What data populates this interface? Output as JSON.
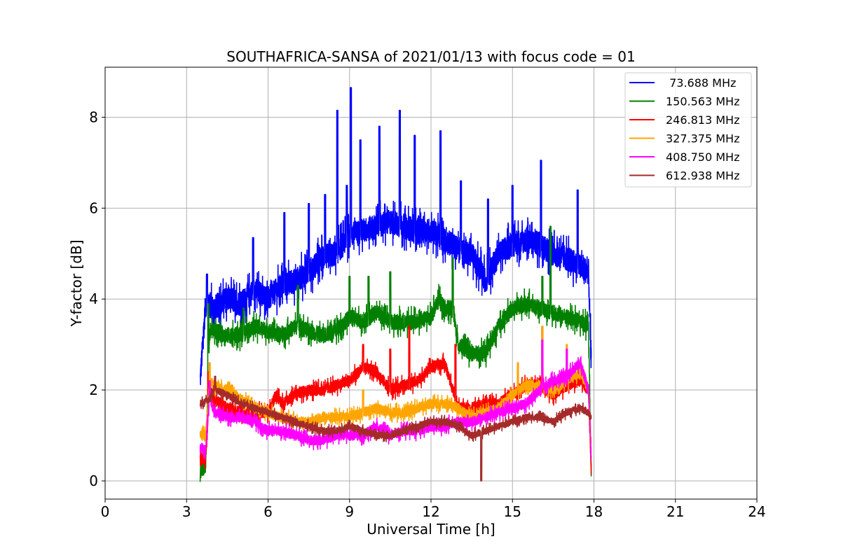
{
  "chart_data": {
    "type": "line",
    "title": "SOUTHAFRICA-SANSA of 2021/01/13 with focus code = 01",
    "xlabel": "Universal Time [h]",
    "ylabel": "Y-factor [dB]",
    "xlim": [
      0,
      24
    ],
    "ylim": [
      -0.4,
      9.1
    ],
    "xticks": [
      0,
      3,
      6,
      9,
      12,
      15,
      18,
      21,
      24
    ],
    "xtick_labels": [
      "0",
      "3",
      "6",
      "9",
      "12",
      "15",
      "18",
      "21",
      "24"
    ],
    "yticks": [
      0,
      2,
      4,
      6,
      8
    ],
    "ytick_labels": [
      "0",
      "2",
      "4",
      "6",
      "8"
    ],
    "grid": true,
    "legend_position": "top-right",
    "series": [
      {
        "name": " 73.688 MHz",
        "color": "#0000ff",
        "x": [
          3.5,
          3.7,
          4.0,
          4.5,
          5.0,
          5.5,
          6.0,
          6.5,
          7.0,
          7.5,
          8.0,
          8.5,
          9.0,
          9.5,
          10.0,
          10.5,
          11.0,
          11.5,
          12.0,
          12.5,
          13.0,
          13.5,
          14.0,
          14.5,
          15.0,
          15.5,
          16.0,
          16.5,
          17.0,
          17.5,
          17.8,
          17.9
        ],
        "y": [
          2.2,
          3.9,
          3.8,
          4.0,
          3.9,
          4.2,
          4.0,
          4.3,
          4.4,
          4.6,
          4.9,
          5.0,
          5.4,
          5.5,
          5.6,
          5.7,
          5.6,
          5.5,
          5.5,
          5.3,
          5.1,
          5.0,
          4.4,
          5.0,
          5.2,
          5.3,
          5.2,
          5.0,
          4.9,
          4.7,
          4.6,
          2.6
        ],
        "peaks": [
          [
            3.75,
            4.55
          ],
          [
            5.45,
            5.35
          ],
          [
            6.6,
            5.9
          ],
          [
            7.5,
            6.1
          ],
          [
            8.1,
            6.3
          ],
          [
            8.55,
            8.15
          ],
          [
            8.9,
            6.5
          ],
          [
            9.05,
            8.65
          ],
          [
            9.4,
            7.5
          ],
          [
            10.1,
            7.8
          ],
          [
            10.85,
            8.15
          ],
          [
            11.4,
            7.6
          ],
          [
            12.35,
            7.7
          ],
          [
            13.1,
            6.6
          ],
          [
            14.1,
            6.2
          ],
          [
            15.0,
            6.5
          ],
          [
            16.05,
            7.05
          ],
          [
            17.4,
            6.4
          ]
        ],
        "spread": 0.55
      },
      {
        "name": "150.563 MHz",
        "color": "#008000",
        "x": [
          3.5,
          3.7,
          3.85,
          4.0,
          4.5,
          5.0,
          5.5,
          6.0,
          6.5,
          7.0,
          7.5,
          8.0,
          8.5,
          9.0,
          9.5,
          10.0,
          10.5,
          11.0,
          11.5,
          12.0,
          12.3,
          12.5,
          12.8,
          13.0,
          13.5,
          14.0,
          14.5,
          15.0,
          15.5,
          16.0,
          16.5,
          17.0,
          17.5,
          17.8,
          17.9
        ],
        "y": [
          0.3,
          0.3,
          3.3,
          3.3,
          3.2,
          3.2,
          3.4,
          3.3,
          3.2,
          3.4,
          3.3,
          3.2,
          3.3,
          3.6,
          3.5,
          3.7,
          3.5,
          3.5,
          3.5,
          3.6,
          4.0,
          3.8,
          3.8,
          3.0,
          2.8,
          2.8,
          3.4,
          3.8,
          3.9,
          3.8,
          3.7,
          3.6,
          3.5,
          3.4,
          0.1
        ],
        "peaks": [
          [
            3.8,
            3.9
          ],
          [
            5.1,
            3.8
          ],
          [
            7.1,
            4.3
          ],
          [
            9.0,
            4.5
          ],
          [
            9.7,
            4.5
          ],
          [
            10.5,
            4.6
          ],
          [
            11.0,
            3.3
          ],
          [
            12.8,
            4.9
          ],
          [
            16.1,
            4.5
          ],
          [
            16.4,
            5.6
          ]
        ],
        "spread": 0.35
      },
      {
        "name": "246.813 MHz",
        "color": "#ff0000",
        "x": [
          3.5,
          3.7,
          3.85,
          4.0,
          4.5,
          5.0,
          5.5,
          6.0,
          6.3,
          6.5,
          7.0,
          7.5,
          8.0,
          8.5,
          9.0,
          9.5,
          10.0,
          10.5,
          11.0,
          11.5,
          12.0,
          12.5,
          13.0,
          13.5,
          14.0,
          14.5,
          15.0,
          15.5,
          16.0,
          16.5,
          17.0,
          17.5,
          17.8,
          17.9
        ],
        "y": [
          0.5,
          0.5,
          2.0,
          1.8,
          1.6,
          1.5,
          1.5,
          1.5,
          1.9,
          1.7,
          1.9,
          2.0,
          2.0,
          2.1,
          2.2,
          2.5,
          2.4,
          2.0,
          2.1,
          2.2,
          2.5,
          2.6,
          1.6,
          1.6,
          1.7,
          1.7,
          1.9,
          2.1,
          2.1,
          1.9,
          2.1,
          2.2,
          2.0,
          0.2
        ],
        "peaks": [
          [
            3.8,
            2.4
          ],
          [
            9.5,
            3.0
          ],
          [
            10.5,
            2.9
          ],
          [
            11.2,
            3.4
          ],
          [
            12.9,
            3.0
          ],
          [
            16.1,
            3.4
          ]
        ],
        "spread": 0.25
      },
      {
        "name": "327.375 MHz",
        "color": "#ffa500",
        "x": [
          3.5,
          3.7,
          3.85,
          4.0,
          4.5,
          5.0,
          5.5,
          6.0,
          6.5,
          7.0,
          7.5,
          8.0,
          8.5,
          9.0,
          9.5,
          10.0,
          10.5,
          11.0,
          11.5,
          12.0,
          12.5,
          13.0,
          13.5,
          14.0,
          14.5,
          15.0,
          15.5,
          16.0,
          16.5,
          17.0,
          17.5,
          17.8,
          17.9
        ],
        "y": [
          1.0,
          1.0,
          2.2,
          2.1,
          2.0,
          1.8,
          1.6,
          1.5,
          1.4,
          1.3,
          1.3,
          1.4,
          1.4,
          1.4,
          1.5,
          1.6,
          1.5,
          1.5,
          1.6,
          1.7,
          1.7,
          1.6,
          1.4,
          1.5,
          1.6,
          1.9,
          2.1,
          2.1,
          2.0,
          2.2,
          2.4,
          2.0,
          0.8
        ],
        "peaks": [
          [
            3.85,
            2.6
          ],
          [
            9.5,
            2.0
          ],
          [
            15.2,
            2.6
          ],
          [
            16.1,
            3.4
          ],
          [
            17.0,
            3.0
          ]
        ],
        "spread": 0.22
      },
      {
        "name": "408.750 MHz",
        "color": "#ff00ff",
        "x": [
          3.5,
          3.7,
          3.85,
          4.0,
          4.5,
          5.0,
          5.5,
          6.0,
          6.5,
          7.0,
          7.5,
          8.0,
          8.5,
          9.0,
          9.5,
          10.0,
          10.5,
          11.0,
          11.5,
          12.0,
          12.5,
          13.0,
          13.5,
          14.0,
          14.5,
          15.0,
          15.5,
          16.0,
          16.5,
          17.0,
          17.5,
          17.8,
          17.9
        ],
        "y": [
          0.7,
          0.7,
          1.9,
          1.5,
          1.4,
          1.4,
          1.3,
          1.1,
          1.1,
          1.0,
          0.9,
          0.9,
          1.0,
          1.0,
          1.0,
          1.2,
          1.0,
          1.1,
          1.1,
          1.2,
          1.2,
          1.3,
          1.3,
          1.4,
          1.5,
          1.6,
          1.7,
          2.0,
          2.2,
          2.3,
          2.6,
          2.0,
          0.5
        ],
        "peaks": [
          [
            3.85,
            2.2
          ],
          [
            16.1,
            3.1
          ],
          [
            17.0,
            2.9
          ]
        ],
        "spread": 0.22
      },
      {
        "name": "612.938 MHz",
        "color": "#a52a2a",
        "x": [
          3.5,
          3.85,
          4.0,
          4.5,
          5.0,
          5.5,
          6.0,
          6.5,
          7.0,
          7.5,
          8.0,
          8.5,
          9.0,
          9.5,
          10.0,
          10.5,
          11.0,
          11.5,
          12.0,
          12.5,
          13.0,
          13.5,
          14.0,
          14.5,
          15.0,
          15.5,
          16.0,
          16.5,
          17.0,
          17.5,
          17.8,
          17.9
        ],
        "y": [
          1.7,
          1.8,
          2.0,
          1.9,
          1.7,
          1.6,
          1.5,
          1.4,
          1.3,
          1.2,
          1.1,
          1.1,
          1.2,
          1.1,
          1.0,
          1.0,
          1.1,
          1.2,
          1.3,
          1.3,
          1.2,
          1.0,
          1.1,
          1.2,
          1.3,
          1.4,
          1.4,
          1.3,
          1.5,
          1.6,
          1.5,
          1.4
        ],
        "peaks": [
          [
            4.05,
            2.3
          ],
          [
            13.85,
            0.0
          ]
        ],
        "spread": 0.15
      }
    ]
  }
}
